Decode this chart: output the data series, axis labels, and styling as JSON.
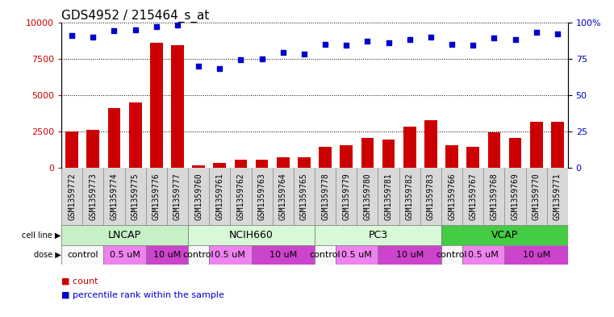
{
  "title": "GDS4952 / 215464_s_at",
  "samples": [
    "GSM1359772",
    "GSM1359773",
    "GSM1359774",
    "GSM1359775",
    "GSM1359776",
    "GSM1359777",
    "GSM1359760",
    "GSM1359761",
    "GSM1359762",
    "GSM1359763",
    "GSM1359764",
    "GSM1359765",
    "GSM1359778",
    "GSM1359779",
    "GSM1359780",
    "GSM1359781",
    "GSM1359782",
    "GSM1359783",
    "GSM1359766",
    "GSM1359767",
    "GSM1359768",
    "GSM1359769",
    "GSM1359770",
    "GSM1359771"
  ],
  "counts": [
    2500,
    2600,
    4100,
    4500,
    8600,
    8400,
    200,
    350,
    550,
    550,
    750,
    750,
    1450,
    1550,
    2050,
    1950,
    2850,
    3250,
    1550,
    1450,
    2450,
    2050,
    3150,
    3150
  ],
  "percentiles": [
    91,
    90,
    94,
    95,
    97,
    98,
    70,
    68,
    74,
    75,
    79,
    78,
    85,
    84,
    87,
    86,
    88,
    90,
    85,
    84,
    89,
    88,
    93,
    92
  ],
  "cell_lines": [
    {
      "label": "LNCAP",
      "start": 0,
      "end": 6,
      "color": "#c8f0c8"
    },
    {
      "label": "NCIH660",
      "start": 6,
      "end": 12,
      "color": "#d8f8d8"
    },
    {
      "label": "PC3",
      "start": 12,
      "end": 18,
      "color": "#d8f8d8"
    },
    {
      "label": "VCAP",
      "start": 18,
      "end": 24,
      "color": "#44cc44"
    }
  ],
  "doses": [
    {
      "label": "control",
      "start": 0,
      "end": 2,
      "color": "#f8f8f8"
    },
    {
      "label": "0.5 uM",
      "start": 2,
      "end": 4,
      "color": "#ee82ee"
    },
    {
      "label": "10 uM",
      "start": 4,
      "end": 6,
      "color": "#cc44cc"
    },
    {
      "label": "control",
      "start": 6,
      "end": 7,
      "color": "#f8f8f8"
    },
    {
      "label": "0.5 uM",
      "start": 7,
      "end": 9,
      "color": "#ee82ee"
    },
    {
      "label": "10 uM",
      "start": 9,
      "end": 12,
      "color": "#cc44cc"
    },
    {
      "label": "control",
      "start": 12,
      "end": 13,
      "color": "#f8f8f8"
    },
    {
      "label": "0.5 uM",
      "start": 13,
      "end": 15,
      "color": "#ee82ee"
    },
    {
      "label": "10 uM",
      "start": 15,
      "end": 18,
      "color": "#cc44cc"
    },
    {
      "label": "control",
      "start": 18,
      "end": 19,
      "color": "#f8f8f8"
    },
    {
      "label": "0.5 uM",
      "start": 19,
      "end": 21,
      "color": "#ee82ee"
    },
    {
      "label": "10 uM",
      "start": 21,
      "end": 24,
      "color": "#cc44cc"
    }
  ],
  "ylim_left": [
    0,
    10000
  ],
  "ylim_right": [
    0,
    100
  ],
  "yticks_left": [
    0,
    2500,
    5000,
    7500,
    10000
  ],
  "yticks_right": [
    0,
    25,
    50,
    75,
    100
  ],
  "bar_color": "#cc0000",
  "dot_color": "#0000cc",
  "bg_plot": "#ffffff",
  "bg_xlabels": "#d8d8d8",
  "grid_color": "#000000",
  "title_fontsize": 11,
  "tick_fontsize": 7,
  "label_fontsize": 8,
  "cell_fontsize": 9,
  "dose_fontsize": 8
}
